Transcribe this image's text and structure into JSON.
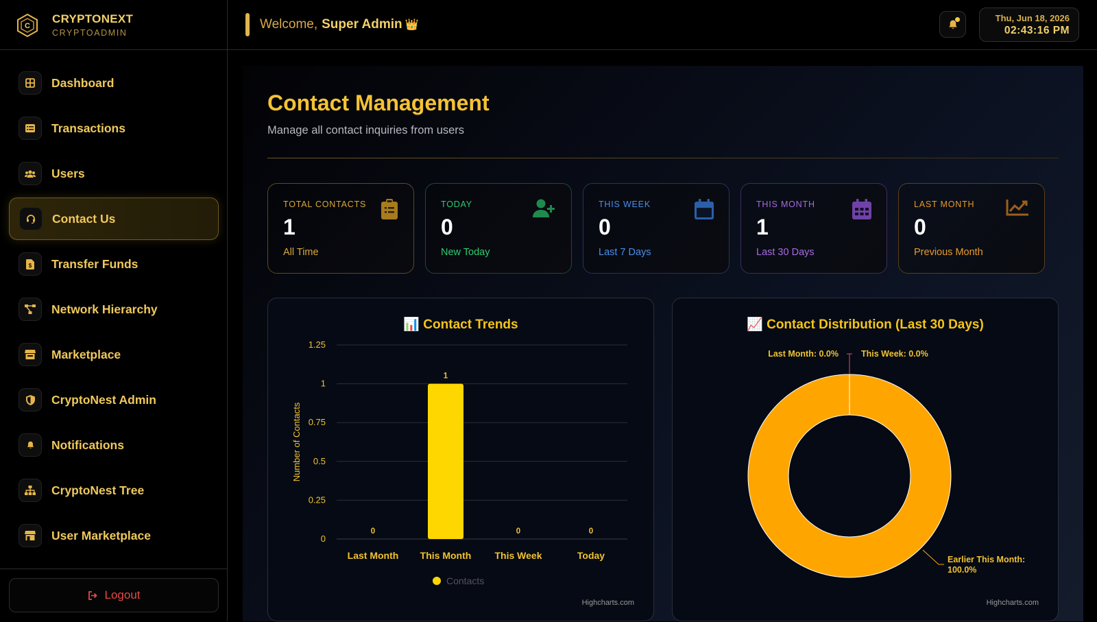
{
  "brand": {
    "name": "CRYPTONEXT",
    "sub": "CRYPTOADMIN"
  },
  "header": {
    "welcome": "Welcome,",
    "user": "Super Admin",
    "crown": "👑",
    "date": "Thu, Jun 18, 2026",
    "time": "02:43:16 PM"
  },
  "sidebar": {
    "items": [
      {
        "label": "Dashboard",
        "icon": "grid-icon"
      },
      {
        "label": "Transactions",
        "icon": "list-icon"
      },
      {
        "label": "Users",
        "icon": "users-icon"
      },
      {
        "label": "Contact Us",
        "icon": "headset-icon",
        "active": true
      },
      {
        "label": "Transfer Funds",
        "icon": "file-dollar-icon"
      },
      {
        "label": "Network Hierarchy",
        "icon": "network-icon"
      },
      {
        "label": "Marketplace",
        "icon": "store-icon"
      },
      {
        "label": "CryptoNest Admin",
        "icon": "shield-icon"
      },
      {
        "label": "Notifications",
        "icon": "bell-icon"
      },
      {
        "label": "CryptoNest Tree",
        "icon": "sitemap-icon"
      },
      {
        "label": "User Marketplace",
        "icon": "shop-icon"
      }
    ],
    "logout": "Logout"
  },
  "page": {
    "title": "Contact Management",
    "subtitle": "Manage all contact inquiries from users"
  },
  "stats": [
    {
      "label": "TOTAL CONTACTS",
      "value": "1",
      "sub": "All Time",
      "color": "#d9a93a",
      "border": "#5a4a22",
      "icon": "clipboard-icon"
    },
    {
      "label": "TODAY",
      "value": "0",
      "sub": "New Today",
      "color": "#2ecc71",
      "border": "#1e4a33",
      "icon": "user-plus-icon"
    },
    {
      "label": "THIS WEEK",
      "value": "0",
      "sub": "Last 7 Days",
      "color": "#4a8fe8",
      "border": "#23355c",
      "icon": "calendar-icon"
    },
    {
      "label": "THIS MONTH",
      "value": "1",
      "sub": "Last 30 Days",
      "color": "#a66be0",
      "border": "#3e2c5e",
      "icon": "calendar-grid-icon"
    },
    {
      "label": "LAST MONTH",
      "value": "0",
      "sub": "Previous Month",
      "color": "#e69a2e",
      "border": "#5a3e1c",
      "icon": "chart-line-icon"
    }
  ],
  "trends_panel": {
    "title": "📊 Contact Trends",
    "credit": "Highcharts.com"
  },
  "distribution_panel": {
    "title": "📈 Contact Distribution (Last 30 Days)",
    "credit": "Highcharts.com"
  },
  "chart_data": [
    {
      "type": "bar",
      "title": "📊 Contact Trends",
      "categories": [
        "Last Month",
        "This Month",
        "This Week",
        "Today"
      ],
      "series": [
        {
          "name": "Contacts",
          "values": [
            0,
            1,
            0,
            0
          ],
          "color": "#ffd700"
        }
      ],
      "ylabel": "Number of Contacts",
      "yticks": [
        "0",
        "0.25",
        "0.5",
        "0.75",
        "1",
        "1.25"
      ],
      "ylim": [
        0,
        1.25
      ],
      "grid": true,
      "legend": "bottom-center"
    },
    {
      "type": "pie",
      "title": "📈 Contact Distribution (Last 30 Days)",
      "slices": [
        {
          "label": "Last Month: 0.0%",
          "value": 0
        },
        {
          "label": "This Week: 0.0%",
          "value": 0
        },
        {
          "label": "Earlier This Month: 100.0%",
          "value": 100
        }
      ],
      "donut": true,
      "colors": [
        "#e84a6a",
        "#c0392b",
        "#ffa500"
      ]
    }
  ]
}
